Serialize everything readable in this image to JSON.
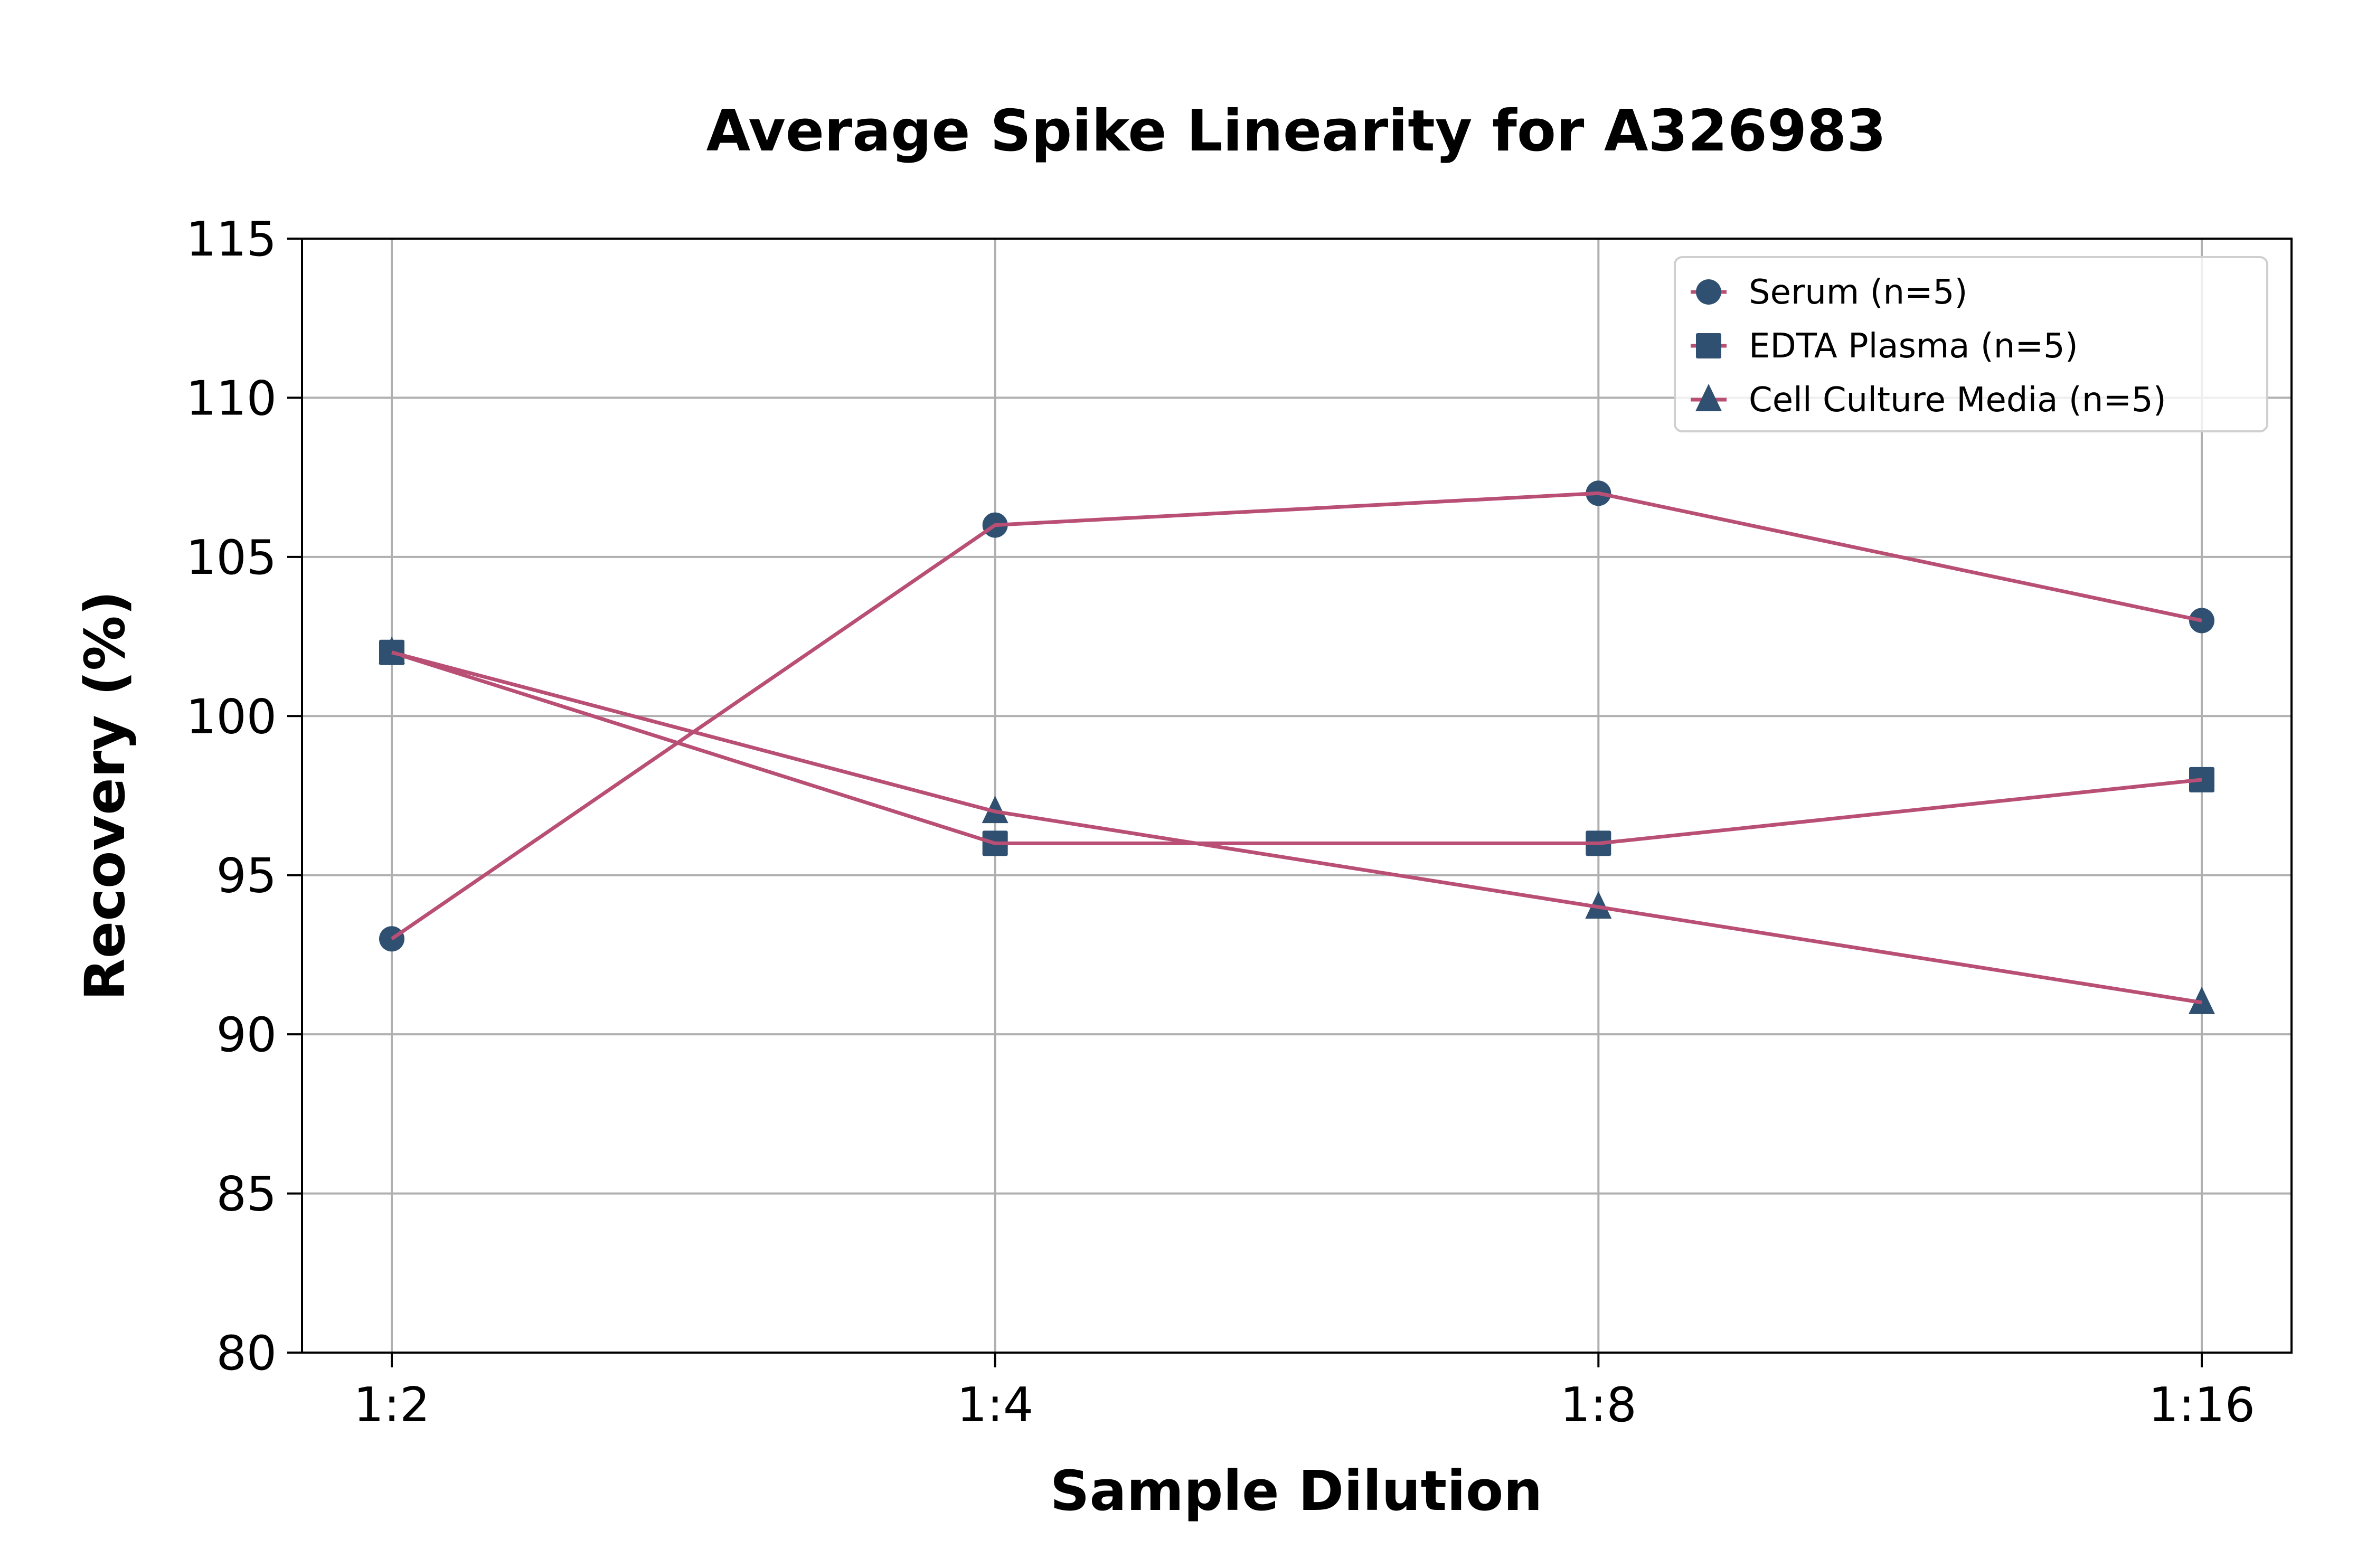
{
  "chart_data": {
    "type": "line",
    "title": "Average Spike Linearity for A326983",
    "xlabel": "Sample Dilution",
    "ylabel": "Recovery (%)",
    "categories": [
      "1:2",
      "1:4",
      "1:8",
      "1:16"
    ],
    "ylim": [
      80,
      115
    ],
    "yticks": [
      80,
      85,
      90,
      95,
      100,
      105,
      110,
      115
    ],
    "ytick_labels": [
      "80",
      "85",
      "90",
      "95",
      "100",
      "105",
      "110",
      "115"
    ],
    "grid": true,
    "legend_position": "top-right",
    "line_color": "#b94f74",
    "marker_color": "#2f5070",
    "series": [
      {
        "name": "Serum (n=5)",
        "marker": "circle",
        "values": [
          93,
          106,
          107,
          103
        ]
      },
      {
        "name": "EDTA Plasma (n=5)",
        "marker": "square",
        "values": [
          102,
          96,
          96,
          98
        ]
      },
      {
        "name": "Cell Culture Media (n=5)",
        "marker": "triangle",
        "values": [
          102,
          97,
          94,
          91
        ]
      }
    ]
  }
}
